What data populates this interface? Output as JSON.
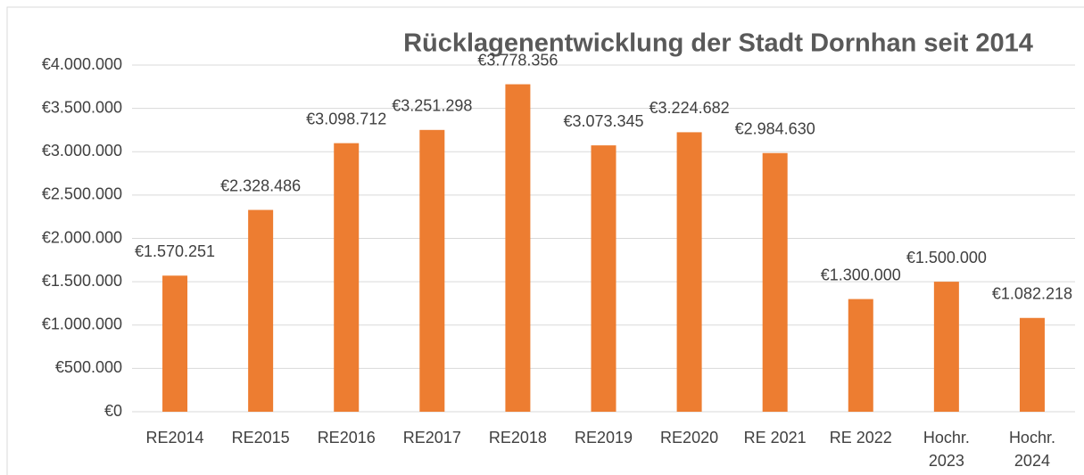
{
  "chart_data": {
    "type": "bar",
    "title": "Rücklagenentwicklung der Stadt Dornhan seit 2014",
    "categories": [
      "RE2014",
      "RE2015",
      "RE2016",
      "RE2017",
      "RE2018",
      "RE2019",
      "RE2020",
      "RE 2021",
      "RE 2022",
      "Hochr.\n2023",
      "Hochr.\n2024"
    ],
    "values": [
      1570251,
      2328486,
      3098712,
      3251298,
      3778356,
      3073345,
      3224682,
      2984630,
      1300000,
      1500000,
      1082218
    ],
    "value_labels": [
      "€1.570.251",
      "€2.328.486",
      "€3.098.712",
      "€3.251.298",
      "€3.778.356",
      "€3.073.345",
      "€3.224.682",
      "€2.984.630",
      "€1.300.000",
      "€1.500.000",
      "€1.082.218"
    ],
    "color": "#ed7d31",
    "ylim": [
      0,
      4000000
    ],
    "yticks": [
      {
        "value": 0,
        "label": "€0"
      },
      {
        "value": 500000,
        "label": "€500.000"
      },
      {
        "value": 1000000,
        "label": "€1.000.000"
      },
      {
        "value": 1500000,
        "label": "€1.500.000"
      },
      {
        "value": 2000000,
        "label": "€2.000.000"
      },
      {
        "value": 2500000,
        "label": "€2.500.000"
      },
      {
        "value": 3000000,
        "label": "€3.000.000"
      },
      {
        "value": 3500000,
        "label": "€3.500.000"
      },
      {
        "value": 4000000,
        "label": "€4.000.000"
      }
    ],
    "grid": true
  }
}
